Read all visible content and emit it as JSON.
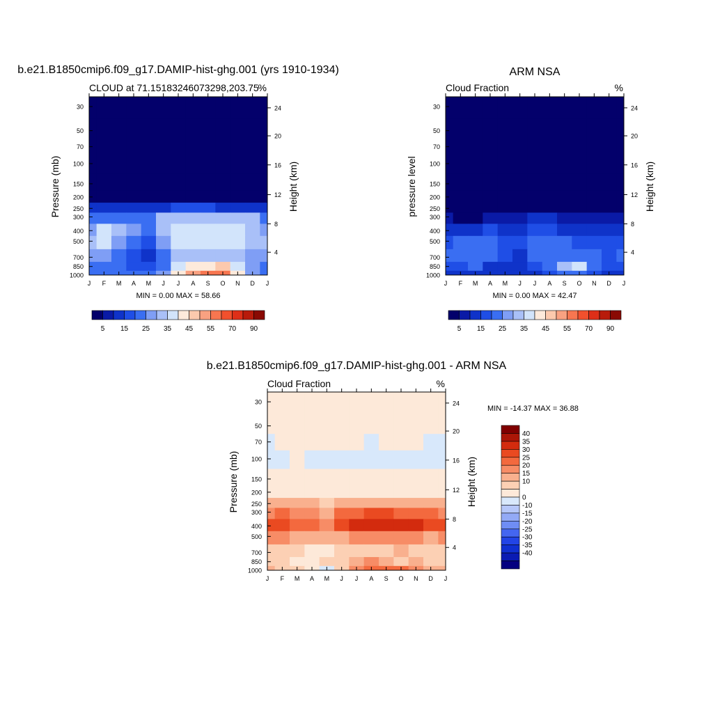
{
  "panels": [
    {
      "id": "model",
      "main_title": "b.e21.B1850cmip6.f09_g17.DAMIP-hist-ghg.001 (yrs 1910-1934)",
      "left_title": "CLOUD at 71.15183246073298,203.75",
      "right_title": "%",
      "ylabel_left": "Pressure (mb)",
      "ylabel_right": "Height (km)",
      "stats": "MIN =   0.00 MAX =  58.66"
    },
    {
      "id": "obs",
      "main_title": "ARM NSA",
      "left_title": "Cloud Fraction",
      "right_title": "%",
      "ylabel_left": "pressure level",
      "ylabel_right": "Height (km)",
      "stats": "MIN =   0.00 MAX =  42.47"
    },
    {
      "id": "diff",
      "main_title": "b.e21.B1850cmip6.f09_g17.DAMIP-hist-ghg.001 - ARM NSA",
      "left_title": "Cloud Fraction",
      "right_title": "%",
      "ylabel_left": "Pressure (mb)",
      "ylabel_right": "Height (km)",
      "stats": "MIN = -14.37 MAX =  36.88"
    }
  ],
  "colors": {
    "cloud_scale": [
      "#03006b",
      "#0a1aa6",
      "#0f33c9",
      "#1f4ee6",
      "#3a6ef2",
      "#7f9ef5",
      "#a9c0f8",
      "#d2e4fb",
      "#fdeadb",
      "#fcc9ad",
      "#f9a181",
      "#f77650",
      "#f1502d",
      "#de2f18",
      "#b81b0b",
      "#8a0a03"
    ],
    "diff_scale": [
      "#040080",
      "#0a1bb3",
      "#1030d1",
      "#2244e6",
      "#4466f0",
      "#6f8df4",
      "#93aaf6",
      "#b6c7f9",
      "#d8e8fb",
      "#fde9d9",
      "#fcd0b4",
      "#f9b08e",
      "#f78c66",
      "#f3693e",
      "#ea4a21",
      "#d32b0e",
      "#ab1607",
      "#800000"
    ]
  },
  "chart_data": [
    {
      "type": "heatmap",
      "title": "CLOUD at 71.15183246073298,203.75",
      "x_ticks": [
        "J",
        "F",
        "M",
        "A",
        "M",
        "J",
        "J",
        "A",
        "S",
        "O",
        "N",
        "D",
        "J"
      ],
      "y_ticks_pressure": [
        30,
        50,
        70,
        100,
        150,
        200,
        250,
        300,
        400,
        500,
        700,
        850,
        1000
      ],
      "y_ticks_height": [
        24,
        20,
        16,
        12,
        8,
        4
      ],
      "ylabel": "Pressure (mb)",
      "ylabel_right": "Height (km)",
      "units": "%",
      "min": 0.0,
      "max": 58.66,
      "x": [
        0,
        1,
        2,
        3,
        4,
        5,
        6,
        7,
        8,
        9,
        10,
        11,
        12
      ],
      "y": [
        30,
        50,
        70,
        100,
        150,
        200,
        250,
        300,
        400,
        500,
        700,
        850,
        1000
      ],
      "values": [
        [
          0,
          0,
          0,
          0,
          0,
          0,
          0,
          0,
          0,
          0,
          0,
          0,
          0
        ],
        [
          0,
          0,
          0,
          0,
          0,
          0,
          0,
          0,
          0,
          0,
          0,
          0,
          0
        ],
        [
          0,
          0,
          0,
          0,
          0,
          0,
          0,
          0,
          0,
          0,
          0,
          0,
          0
        ],
        [
          0,
          0,
          0,
          0,
          0,
          0,
          0,
          0,
          0,
          0,
          0,
          0,
          0
        ],
        [
          0,
          0,
          0,
          0,
          0,
          0,
          0,
          0,
          0,
          0,
          0,
          0,
          0
        ],
        [
          4,
          3,
          3,
          3,
          2,
          3,
          3,
          3,
          3,
          3,
          3,
          3,
          4
        ],
        [
          13,
          12,
          12,
          12,
          10,
          14,
          16,
          16,
          16,
          14,
          14,
          14,
          13
        ],
        [
          22,
          22,
          20,
          22,
          20,
          30,
          33,
          33,
          33,
          33,
          32,
          30,
          22
        ],
        [
          28,
          35,
          30,
          25,
          20,
          33,
          38,
          38,
          38,
          38,
          36,
          33,
          28
        ],
        [
          30,
          35,
          28,
          22,
          18,
          28,
          36,
          38,
          38,
          38,
          36,
          33,
          30
        ],
        [
          25,
          28,
          24,
          18,
          12,
          22,
          30,
          30,
          30,
          33,
          30,
          26,
          25
        ],
        [
          24,
          24,
          22,
          18,
          16,
          22,
          35,
          40,
          44,
          45,
          36,
          28,
          24
        ],
        [
          20,
          22,
          22,
          22,
          22,
          28,
          40,
          50,
          56,
          55,
          40,
          28,
          20
        ]
      ],
      "levels": [
        5,
        10,
        15,
        20,
        25,
        30,
        35,
        40,
        45,
        50,
        55,
        60,
        70,
        80,
        90
      ],
      "colorbar_labels": [
        "5",
        "15",
        "25",
        "35",
        "45",
        "55",
        "70",
        "90"
      ]
    },
    {
      "type": "heatmap",
      "title": "ARM NSA",
      "subtitle": "Cloud Fraction",
      "x_ticks": [
        "J",
        "F",
        "M",
        "A",
        "M",
        "J",
        "J",
        "A",
        "S",
        "O",
        "N",
        "D",
        "J"
      ],
      "y_ticks_pressure": [
        30,
        50,
        70,
        100,
        150,
        200,
        250,
        300,
        400,
        500,
        700,
        850,
        1000
      ],
      "y_ticks_height": [
        24,
        20,
        16,
        12,
        8,
        4
      ],
      "ylabel": "pressure level",
      "ylabel_right": "Height (km)",
      "units": "%",
      "min": 0.0,
      "max": 42.47,
      "x": [
        0,
        1,
        2,
        3,
        4,
        5,
        6,
        7,
        8,
        9,
        10,
        11,
        12
      ],
      "y": [
        30,
        50,
        70,
        100,
        150,
        200,
        250,
        300,
        400,
        500,
        700,
        850,
        1000
      ],
      "values": [
        [
          0,
          0,
          0,
          0,
          0,
          0,
          0,
          0,
          0,
          0,
          0,
          0,
          0
        ],
        [
          0,
          0,
          0,
          0,
          0,
          0,
          0,
          0,
          0,
          0,
          0,
          0,
          0
        ],
        [
          0,
          0,
          0,
          0,
          0,
          0,
          0,
          0,
          0,
          0,
          0,
          0,
          0
        ],
        [
          0,
          0,
          0,
          0,
          0,
          0,
          0,
          0,
          0,
          0,
          0,
          0,
          0
        ],
        [
          0,
          0,
          0,
          0,
          0,
          0,
          0,
          0,
          0,
          0,
          0,
          0,
          0
        ],
        [
          0,
          0,
          0,
          0,
          0,
          0,
          0,
          0,
          0,
          0,
          0,
          0,
          0
        ],
        [
          1,
          1,
          1,
          1,
          1,
          1,
          2,
          2,
          2,
          1,
          1,
          1,
          1
        ],
        [
          8,
          4,
          4,
          6,
          6,
          8,
          10,
          10,
          8,
          6,
          6,
          8,
          8
        ],
        [
          14,
          12,
          12,
          16,
          14,
          14,
          18,
          16,
          14,
          12,
          14,
          14,
          14
        ],
        [
          18,
          20,
          22,
          24,
          18,
          16,
          22,
          20,
          20,
          18,
          18,
          18,
          18
        ],
        [
          20,
          22,
          24,
          22,
          18,
          14,
          20,
          20,
          22,
          22,
          20,
          18,
          20
        ],
        [
          16,
          18,
          20,
          14,
          10,
          12,
          18,
          20,
          30,
          38,
          22,
          16,
          16
        ],
        [
          10,
          12,
          14,
          14,
          10,
          12,
          14,
          16,
          22,
          24,
          16,
          12,
          10
        ]
      ],
      "levels": [
        5,
        10,
        15,
        20,
        25,
        30,
        35,
        40,
        45,
        50,
        55,
        60,
        70,
        80,
        90
      ],
      "colorbar_labels": [
        "5",
        "15",
        "25",
        "35",
        "45",
        "55",
        "70",
        "90"
      ]
    },
    {
      "type": "heatmap",
      "title": "b.e21.B1850cmip6.f09_g17.DAMIP-hist-ghg.001 - ARM NSA",
      "subtitle": "Cloud Fraction",
      "x_ticks": [
        "J",
        "F",
        "M",
        "A",
        "M",
        "J",
        "J",
        "A",
        "S",
        "O",
        "N",
        "D",
        "J"
      ],
      "y_ticks_pressure": [
        30,
        50,
        70,
        100,
        150,
        200,
        250,
        300,
        400,
        500,
        700,
        850,
        1000
      ],
      "y_ticks_height": [
        24,
        20,
        16,
        12,
        8,
        4
      ],
      "ylabel": "Pressure (mb)",
      "ylabel_right": "Height (km)",
      "units": "%",
      "min": -14.37,
      "max": 36.88,
      "x": [
        0,
        1,
        2,
        3,
        4,
        5,
        6,
        7,
        8,
        9,
        10,
        11,
        12
      ],
      "y": [
        30,
        50,
        70,
        100,
        150,
        200,
        250,
        300,
        400,
        500,
        700,
        850,
        1000
      ],
      "values": [
        [
          1,
          1,
          1,
          1,
          1,
          1,
          1,
          1,
          1,
          1,
          1,
          1,
          1
        ],
        [
          1,
          1,
          1,
          1,
          1,
          1,
          1,
          1,
          1,
          1,
          1,
          1,
          1
        ],
        [
          -1,
          1,
          1,
          1,
          1,
          1,
          1,
          -1,
          1,
          1,
          1,
          -1,
          -1
        ],
        [
          -1,
          -1,
          1,
          -1,
          -1,
          -1,
          -1,
          -1,
          -1,
          -1,
          -1,
          -1,
          -1
        ],
        [
          1,
          1,
          1,
          1,
          1,
          1,
          1,
          1,
          1,
          1,
          1,
          1,
          1
        ],
        [
          3,
          3,
          3,
          3,
          2,
          3,
          3,
          3,
          3,
          3,
          3,
          3,
          3
        ],
        [
          12,
          12,
          10,
          10,
          9,
          12,
          14,
          14,
          14,
          13,
          12,
          12,
          12
        ],
        [
          18,
          20,
          18,
          16,
          14,
          22,
          24,
          25,
          25,
          24,
          22,
          20,
          18
        ],
        [
          28,
          27,
          22,
          20,
          18,
          26,
          30,
          32,
          34,
          33,
          30,
          26,
          28
        ],
        [
          16,
          16,
          12,
          10,
          10,
          14,
          16,
          16,
          18,
          18,
          16,
          14,
          16
        ],
        [
          6,
          8,
          8,
          4,
          2,
          6,
          8,
          6,
          6,
          10,
          8,
          6,
          6
        ],
        [
          8,
          6,
          4,
          4,
          6,
          8,
          14,
          18,
          12,
          6,
          12,
          8,
          8
        ],
        [
          10,
          6,
          6,
          4,
          -4,
          8,
          18,
          22,
          24,
          20,
          16,
          10,
          10
        ]
      ],
      "levels": [
        -40,
        -35,
        -30,
        -25,
        -20,
        -15,
        -10,
        -5,
        0,
        5,
        10,
        15,
        20,
        25,
        30,
        35,
        40
      ],
      "colorbar_labels": [
        "40",
        "35",
        "30",
        "25",
        "20",
        "15",
        "10",
        "0",
        "-10",
        "-15",
        "-20",
        "-25",
        "-30",
        "-35",
        "-40"
      ]
    }
  ]
}
